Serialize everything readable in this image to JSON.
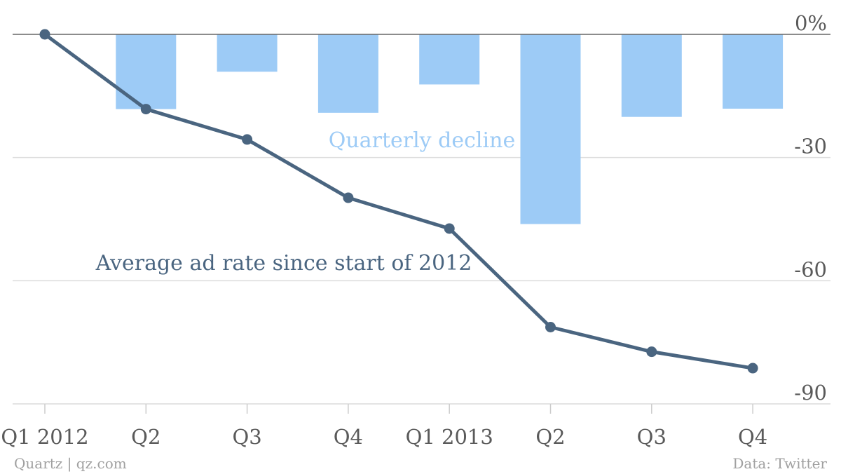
{
  "chart_data": {
    "type": "bar",
    "categories": [
      "Q1 2012",
      "Q2",
      "Q3",
      "Q4",
      "Q1 2013",
      "Q2",
      "Q3",
      "Q4"
    ],
    "series": [
      {
        "name": "Quarterly decline",
        "type": "bar",
        "color": "#9dcbf6",
        "values": [
          0,
          -18.2,
          -9.1,
          -19.1,
          -12.2,
          -46.2,
          -20.1,
          -18.1
        ]
      },
      {
        "name": "Average ad rate since start of 2012",
        "type": "line",
        "color": "#4a6580",
        "values": [
          0,
          -18.2,
          -25.6,
          -39.8,
          -47.3,
          -71.3,
          -77.3,
          -81.3
        ]
      }
    ],
    "yticks": [
      {
        "value": 0,
        "label": "0%"
      },
      {
        "value": -30,
        "label": "-30"
      },
      {
        "value": -60,
        "label": "-60"
      },
      {
        "value": -90,
        "label": "-90"
      }
    ],
    "ylim": [
      -90,
      0
    ],
    "grid": true,
    "y_axis_side": "right"
  },
  "footer": {
    "source_left": "Quartz | qz.com",
    "source_right": "Data: Twitter"
  }
}
